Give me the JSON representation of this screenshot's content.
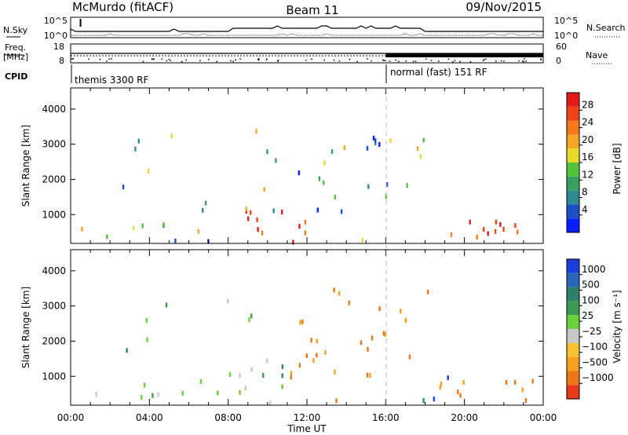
{
  "header": {
    "station": "McMurdo (fitACF)",
    "beam": "Beam 11",
    "date": "09/Nov/2015"
  },
  "status_panel": {
    "n_sky_label": "N.Sky",
    "n_search_label": "N.Search",
    "freq_label": "Freq.",
    "freq_unit": "[MHz]",
    "nave_label": "Nave",
    "cpid_label": "CPID",
    "noise_top_left": "10^5",
    "noise_bottom_left": "10^0",
    "noise_top_right": "10^5",
    "noise_bottom_right": "10^0",
    "freq_ticks": [
      "18",
      "8"
    ],
    "nave_ticks": [
      "60",
      "0"
    ],
    "programs": [
      {
        "name": "themis 3300 RF",
        "start": 0
      },
      {
        "name": "normal (fast) 151 RF",
        "start": 16
      }
    ]
  },
  "chart_data": [
    {
      "type": "heatmap",
      "name": "power",
      "xlabel": "",
      "ylabel": "Slant Range [km]",
      "x_range_hours": [
        0,
        24
      ],
      "x_ticks": [
        "00:00",
        "04:00",
        "08:00",
        "12:00",
        "16:00",
        "20:00",
        "00:00"
      ],
      "ylim": [
        180,
        4600
      ],
      "y_ticks": [
        1000,
        2000,
        3000,
        4000
      ],
      "colorbar": {
        "label": "Power [dB]",
        "ticks": [
          4,
          8,
          12,
          16,
          20,
          24,
          28
        ],
        "colors": [
          "#0a1eff",
          "#1e4ec8",
          "#2f8a96",
          "#3aa060",
          "#56c23c",
          "#e8d92a",
          "#f5a623",
          "#f47a1c",
          "#ee4418",
          "#e41a1a"
        ]
      }
    },
    {
      "type": "heatmap",
      "name": "velocity",
      "xlabel": "Time UT",
      "ylabel": "Slant Range [km]",
      "x_range_hours": [
        0,
        24
      ],
      "x_ticks": [
        "00:00",
        "04:00",
        "08:00",
        "12:00",
        "16:00",
        "20:00",
        "00:00"
      ],
      "ylim": [
        180,
        4600
      ],
      "y_ticks": [
        1000,
        2000,
        3000,
        4000
      ],
      "colorbar": {
        "label": "Velocity [m s⁻¹]",
        "ticks": [
          "1000",
          "500",
          "100",
          "25",
          "−25",
          "−100",
          "−500",
          "−1000"
        ],
        "colors": [
          "#1a3fd8",
          "#2a66b8",
          "#2f7f6a",
          "#3d9950",
          "#6ccf3c",
          "#c8c8c8",
          "#f5c231",
          "#f5a11f",
          "#ef7519",
          "#e8391a"
        ]
      }
    }
  ]
}
